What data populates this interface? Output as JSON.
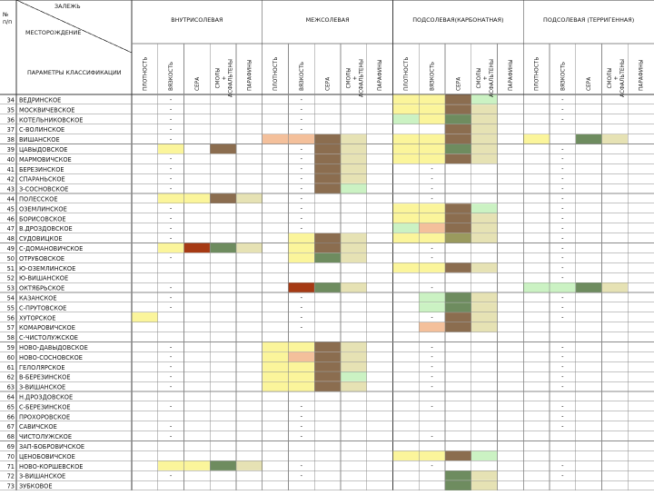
{
  "header": {
    "corner_top": "ЗАЛЕЖЬ",
    "corner_mid": "МЕСТОРОЖДЕНИЕ",
    "corner_bottom": "ПАРАМЕТРЫ КЛАССИФИКАЦИИ",
    "num_label": "№\nп/п"
  },
  "groups": [
    {
      "id": "g1",
      "label": "ВНУТРИСОЛЕВАЯ"
    },
    {
      "id": "g2",
      "label": "МЕЖСОЛЕВАЯ"
    },
    {
      "id": "g3",
      "label": "ПОДСОЛЕВАЯ(КАРБОНАТНАЯ)"
    },
    {
      "id": "g4",
      "label": "ПОДСОЛЕВАЯ (ТЕРРИГЕННАЯ)"
    }
  ],
  "columns": [
    {
      "group": "g1",
      "label": "ПЛОТНОСТЬ"
    },
    {
      "group": "g1",
      "label": "ВЯЗКОСТЬ"
    },
    {
      "group": "g1",
      "label": "СЕРА"
    },
    {
      "group": "g1",
      "label": "СМОЛЫ + АСФАЛЬТЕНЫ"
    },
    {
      "group": "g1",
      "label": "ПАРАФИНЫ"
    },
    {
      "group": "g2",
      "label": "ПЛОТНОСТЬ"
    },
    {
      "group": "g2",
      "label": "ВЯЗКОСТЬ"
    },
    {
      "group": "g2",
      "label": "СЕРА"
    },
    {
      "group": "g2",
      "label": "СМОЛЫ + АСФАЛЬТЕНЫ"
    },
    {
      "group": "g2",
      "label": "ПАРАФИНЫ"
    },
    {
      "group": "g3",
      "label": "ПЛОТНОСТЬ"
    },
    {
      "group": "g3",
      "label": "ВЯЗКОСТЬ"
    },
    {
      "group": "g3",
      "label": "СЕРА"
    },
    {
      "group": "g3",
      "label": "СМОЛЫ + АСФАЛЬТЕНЫ"
    },
    {
      "group": "g3",
      "label": "ПАРАФИНЫ"
    },
    {
      "group": "g4",
      "label": "ПЛОТНОСТЬ"
    },
    {
      "group": "g4",
      "label": "ВЯЗКОСТЬ"
    },
    {
      "group": "g4",
      "label": "СЕРА"
    },
    {
      "group": "g4",
      "label": "СМОЛЫ + АСФАЛЬТЕНЫ"
    },
    {
      "group": "g4",
      "label": "ПАРАФИНЫ"
    }
  ],
  "palette": {
    "Y": "#fbf59b",
    "B": "#8b6d4f",
    "G": "#6e8c5f",
    "LG": "#cbf2c3",
    "BG": "#e6e2b4",
    "P": "#f4c09b",
    "R": "#a63a14",
    "D": "#4f6e47",
    "OL": "#9a9a5e"
  },
  "rows": [
    {
      "num": "34",
      "name": "ВЕДРИНСКОЕ",
      "cells": {
        "11": "Y",
        "12": "Y",
        "13": "B",
        "14": "LG"
      },
      "dash": [
        2,
        7,
        17
      ]
    },
    {
      "num": "35",
      "name": "МОСКВИЧЕВСКОЕ",
      "cells": {
        "11": "Y",
        "12": "Y",
        "13": "B",
        "14": "BG"
      },
      "dash": [
        2,
        7,
        17
      ]
    },
    {
      "num": "36",
      "name": "КОТЕЛЬНИКОВСКОЕ",
      "cells": {
        "11": "LG",
        "12": "Y",
        "13": "G",
        "14": "BG"
      },
      "dash": [
        2,
        7,
        17
      ]
    },
    {
      "num": "37",
      "name": "С-ВОЛИНСКОЕ",
      "cells": {
        "13": "B",
        "14": "BG"
      },
      "dash": [
        2,
        7
      ]
    },
    {
      "num": "38",
      "name": "ВИШАНСКОЕ",
      "cells": {
        "6": "P",
        "7": "P",
        "8": "B",
        "9": "BG",
        "11": "Y",
        "12": "Y",
        "13": "B",
        "14": "BG",
        "16": "Y",
        "18": "G",
        "19": "BG"
      },
      "dash": [
        2
      ]
    },
    {
      "num": "39",
      "name": "ЦАВЫДОВСКОЕ",
      "cells": {
        "2": "Y",
        "4": "B",
        "8": "B",
        "9": "BG",
        "11": "Y",
        "12": "Y",
        "13": "G",
        "14": "BG"
      },
      "dash": [
        7,
        17
      ]
    },
    {
      "num": "40",
      "name": "МАРМОВИЧСКОЕ",
      "cells": {
        "8": "B",
        "9": "BG",
        "11": "Y",
        "12": "Y",
        "13": "B",
        "14": "BG"
      },
      "dash": [
        2,
        7,
        17
      ]
    },
    {
      "num": "41",
      "name": "БЕРЕЗИНСКОЕ",
      "cells": {
        "8": "B",
        "9": "BG"
      },
      "dash": [
        2,
        7,
        12,
        17
      ]
    },
    {
      "num": "42",
      "name": "СПАРАНЬСКОЕ",
      "cells": {
        "8": "B",
        "9": "BG"
      },
      "dash": [
        2,
        7,
        12,
        17
      ]
    },
    {
      "num": "43",
      "name": "З-СОСНОВСКОЕ",
      "cells": {
        "8": "B",
        "9": "LG"
      },
      "dash": [
        2,
        7,
        12,
        17
      ]
    },
    {
      "num": "44",
      "name": "ПОЛЕССКОЕ",
      "cells": {
        "2": "Y",
        "3": "Y",
        "4": "B",
        "5": "BG"
      },
      "dash": [
        7,
        12,
        17
      ]
    },
    {
      "num": "45",
      "name": "ОЗЕМЛИНСКОЕ",
      "cells": {
        "11": "Y",
        "12": "Y",
        "13": "B",
        "14": "LG"
      },
      "dash": [
        2,
        7,
        17
      ]
    },
    {
      "num": "46",
      "name": "БОРИСОВСКОЕ",
      "cells": {
        "11": "Y",
        "12": "Y",
        "13": "B",
        "14": "BG"
      },
      "dash": [
        2,
        7,
        17
      ]
    },
    {
      "num": "47",
      "name": "В.ДРОЗДОВСКОЕ",
      "cells": {
        "11": "LG",
        "12": "P",
        "13": "B",
        "14": "BG"
      },
      "dash": [
        2,
        7,
        17
      ]
    },
    {
      "num": "48",
      "name": "СУДОВИЦКОЕ",
      "cells": {
        "7": "Y",
        "8": "B",
        "9": "BG",
        "11": "Y",
        "12": "Y",
        "13": "OL",
        "14": "BG"
      },
      "dash": [
        2,
        17
      ]
    },
    {
      "num": "49",
      "name": "С-ДОМАНОВИЧСКОЕ",
      "cells": {
        "2": "Y",
        "3": "R",
        "4": "G",
        "5": "BG",
        "7": "Y",
        "8": "B",
        "9": "BG"
      },
      "dash": [
        12,
        17
      ]
    },
    {
      "num": "50",
      "name": "ОТРУБОВСКОЕ",
      "cells": {
        "7": "Y",
        "8": "G",
        "9": "BG"
      },
      "dash": [
        2,
        12,
        17
      ]
    },
    {
      "num": "51",
      "name": "Ю-ОЗЕМЛИНСКОЕ",
      "cells": {
        "11": "Y",
        "12": "Y",
        "13": "B",
        "14": "BG"
      },
      "dash": [
        17
      ]
    },
    {
      "num": "52",
      "name": "Ю-ВИШАНСКОЕ",
      "cells": {},
      "dash": [
        17
      ]
    },
    {
      "num": "53",
      "name": "ОКТЯБРЬСКОЕ",
      "cells": {
        "7": "R",
        "8": "G",
        "9": "BG",
        "16": "LG",
        "17": "LG",
        "18": "G",
        "19": "BG"
      },
      "dash": [
        2,
        12
      ]
    },
    {
      "num": "54",
      "name": "КАЗАНСКОЕ",
      "cells": {
        "12": "LG",
        "13": "G",
        "14": "BG"
      },
      "dash": [
        2,
        7,
        17
      ]
    },
    {
      "num": "55",
      "name": "С-ПРУТОВСКОЕ",
      "cells": {
        "12": "LG",
        "13": "G",
        "14": "BG"
      },
      "dash": [
        2,
        7,
        17
      ]
    },
    {
      "num": "56",
      "name": "ХУТОРСКОЕ",
      "cells": {
        "1": "Y",
        "13": "B",
        "14": "BG"
      },
      "dash": [
        7,
        12,
        17
      ]
    },
    {
      "num": "57",
      "name": "КОМАРОВИЧСКОЕ",
      "cells": {
        "12": "P",
        "13": "B",
        "14": "BG"
      },
      "dash": [
        7
      ]
    },
    {
      "num": "58",
      "name": "С-ЧИСТОЛУЖСКОЕ",
      "cells": {},
      "dash": []
    },
    {
      "num": "59",
      "name": "НОВО-ДАВЫДОВСКОЕ",
      "cells": {
        "6": "Y",
        "7": "Y",
        "8": "B",
        "9": "BG"
      },
      "dash": [
        2,
        12,
        17
      ]
    },
    {
      "num": "60",
      "name": "НОВО-СОСНОВСКОЕ",
      "cells": {
        "6": "Y",
        "7": "P",
        "8": "B",
        "9": "BG"
      },
      "dash": [
        2,
        12,
        17
      ]
    },
    {
      "num": "61",
      "name": "ГЕЛОЛЯРСКОЕ",
      "cells": {
        "6": "Y",
        "7": "Y",
        "8": "B",
        "9": "BG"
      },
      "dash": [
        2,
        12,
        17
      ]
    },
    {
      "num": "62",
      "name": "В-БЕРЕЗИНСКОЕ",
      "cells": {
        "6": "Y",
        "7": "Y",
        "8": "B",
        "9": "LG"
      },
      "dash": [
        2,
        12,
        17
      ]
    },
    {
      "num": "63",
      "name": "З-ВИШАНСКОЕ",
      "cells": {
        "6": "Y",
        "7": "Y",
        "8": "B",
        "9": "BG"
      },
      "dash": [
        2,
        12,
        17
      ]
    },
    {
      "num": "64",
      "name": "Н.ДРОЗДОВСКОЕ",
      "cells": {},
      "dash": []
    },
    {
      "num": "65",
      "name": "С-БЕРЕЗИНСКОЕ",
      "cells": {},
      "dash": [
        2,
        7,
        12,
        17
      ]
    },
    {
      "num": "66",
      "name": "ПРОХОРОВСКОЕ",
      "cells": {},
      "dash": [
        7,
        17
      ]
    },
    {
      "num": "67",
      "name": "САВИЧСКОЕ",
      "cells": {},
      "dash": [
        2,
        7,
        17
      ]
    },
    {
      "num": "68",
      "name": "ЧИСТОЛУЖСКОЕ",
      "cells": {},
      "dash": [
        2,
        7,
        12
      ]
    },
    {
      "num": "69",
      "name": "ЗАП-БОБРОВИЧСКОЕ",
      "cells": {},
      "dash": []
    },
    {
      "num": "70",
      "name": "ЦЕНОБОВИЧСКОЕ",
      "cells": {
        "11": "Y",
        "12": "Y",
        "13": "B",
        "14": "LG"
      },
      "dash": []
    },
    {
      "num": "71",
      "name": "НОВО-КОРШЕВСКОЕ",
      "cells": {
        "2": "Y",
        "3": "Y",
        "4": "G",
        "5": "BG"
      },
      "dash": [
        7,
        12,
        17
      ]
    },
    {
      "num": "72",
      "name": "З-ВИШАНСКОЕ",
      "cells": {
        "13": "G",
        "14": "BG"
      },
      "dash": [
        2,
        7,
        17
      ]
    },
    {
      "num": "73",
      "name": "ЗУБКОВОЕ",
      "cells": {
        "13": "G",
        "14": "BG"
      },
      "dash": []
    }
  ]
}
